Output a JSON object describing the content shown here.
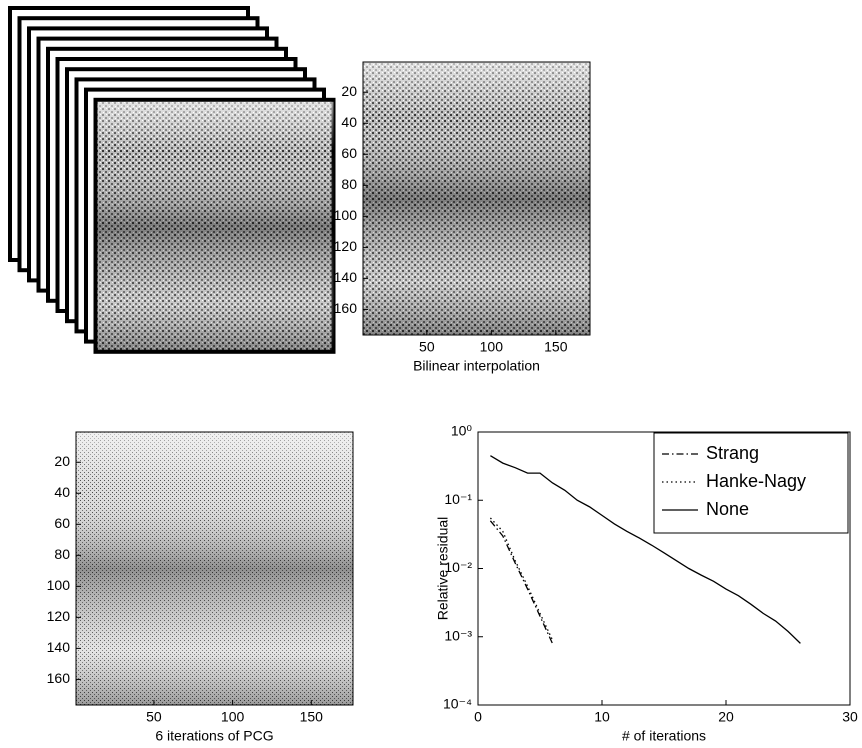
{
  "chart_data": [
    {
      "type": "image",
      "xlabel": "Bilinear interpolation",
      "xlim": [
        0.5,
        176.5
      ],
      "ylim": [
        176.5,
        0.5
      ],
      "xticks": [
        50,
        100,
        150
      ],
      "yticks": [
        20,
        40,
        60,
        80,
        100,
        120,
        140,
        160
      ]
    },
    {
      "type": "image",
      "xlabel": "6 iterations of PCG",
      "xlim": [
        0.5,
        176.5
      ],
      "ylim": [
        176.5,
        0.5
      ],
      "xticks": [
        50,
        100,
        150
      ],
      "yticks": [
        20,
        40,
        60,
        80,
        100,
        120,
        140,
        160
      ]
    },
    {
      "type": "line",
      "xlabel": "# of iterations",
      "ylabel": "Relative residual",
      "log_y": true,
      "legend": "upper-right",
      "xlim": [
        0,
        30
      ],
      "xticks": [
        0,
        10,
        20,
        30
      ],
      "ylim": [
        0.0001,
        1
      ],
      "yticks": [
        {
          "value": 0.0001,
          "label": "10⁻⁴"
        },
        {
          "value": 0.001,
          "label": "10⁻³"
        },
        {
          "value": 0.01,
          "label": "10⁻²"
        },
        {
          "value": 0.1,
          "label": "10⁻¹"
        },
        {
          "value": 1,
          "label": "10⁰"
        }
      ],
      "series": [
        {
          "name": "Strang",
          "color": "#000000",
          "dash": "dashdot",
          "x": [
            1,
            2,
            3,
            4,
            5,
            6
          ],
          "values": [
            0.05,
            0.03,
            0.012,
            0.005,
            0.002,
            0.0008
          ]
        },
        {
          "name": "Hanke-Nagy",
          "color": "#000000",
          "dash": "dotted",
          "x": [
            1,
            2,
            3,
            4,
            5,
            6
          ],
          "values": [
            0.055,
            0.035,
            0.013,
            0.0055,
            0.0022,
            0.0009
          ]
        },
        {
          "name": "None",
          "color": "#000000",
          "dash": "solid",
          "x": [
            1,
            2,
            3,
            4,
            5,
            6,
            7,
            8,
            9,
            10,
            11,
            12,
            13,
            14,
            15,
            16,
            17,
            18,
            19,
            20,
            21,
            22,
            23,
            24,
            25,
            26
          ],
          "values": [
            0.45,
            0.35,
            0.3,
            0.25,
            0.25,
            0.18,
            0.14,
            0.1,
            0.08,
            0.06,
            0.045,
            0.035,
            0.028,
            0.022,
            0.017,
            0.013,
            0.01,
            0.008,
            0.0065,
            0.005,
            0.004,
            0.003,
            0.0022,
            0.0017,
            0.0012,
            0.0008
          ]
        }
      ]
    }
  ]
}
